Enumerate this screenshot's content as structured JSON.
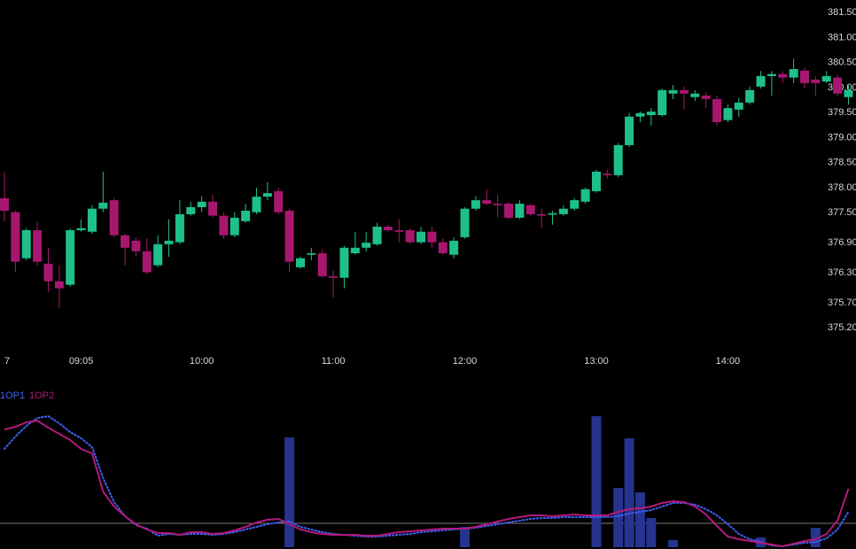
{
  "chart_data": [
    {
      "type": "candlestick",
      "categories": [
        "7",
        null,
        null,
        null,
        null,
        null,
        null,
        "09:05",
        null,
        null,
        null,
        null,
        null,
        null,
        null,
        null,
        null,
        null,
        "10:00",
        null,
        null,
        null,
        null,
        null,
        null,
        null,
        null,
        null,
        null,
        null,
        "11:00",
        null,
        null,
        null,
        null,
        null,
        null,
        null,
        null,
        null,
        null,
        null,
        "12:00",
        null,
        null,
        null,
        null,
        null,
        null,
        null,
        null,
        null,
        null,
        null,
        "13:00",
        null,
        null,
        null,
        null,
        null,
        null,
        null,
        null,
        null,
        null,
        null,
        "14:00",
        null,
        null,
        null,
        null,
        null,
        null,
        null,
        null,
        null,
        null,
        null
      ],
      "open": [
        377.79,
        377.51,
        376.59,
        377.15,
        376.48,
        376.13,
        376.06,
        377.15,
        377.12,
        377.58,
        377.75,
        377.05,
        376.94,
        376.73,
        376.45,
        376.87,
        376.91,
        377.47,
        377.61,
        377.72,
        377.44,
        377.05,
        377.33,
        377.51,
        377.82,
        377.93,
        377.54,
        376.41,
        376.66,
        376.69,
        376.23,
        376.2,
        376.69,
        376.8,
        376.87,
        377.22,
        377.15,
        377.15,
        376.91,
        377.12,
        376.91,
        376.66,
        377.01,
        377.58,
        377.75,
        377.68,
        377.68,
        377.4,
        377.65,
        377.47,
        377.46,
        377.47,
        377.58,
        377.72,
        377.93,
        378.28,
        378.25,
        378.85,
        379.42,
        379.45,
        379.45,
        379.88,
        379.95,
        379.81,
        379.84,
        379.77,
        379.35,
        379.56,
        379.7,
        380.02,
        380.23,
        380.27,
        380.2,
        380.34,
        380.16,
        380.12,
        380.2,
        379.81
      ],
      "high": [
        378.3,
        377.54,
        377.19,
        377.33,
        376.8,
        376.45,
        377.19,
        377.37,
        377.65,
        378.32,
        377.79,
        377.08,
        377.01,
        376.98,
        377.05,
        377.37,
        377.75,
        377.72,
        377.83,
        377.86,
        377.51,
        377.51,
        377.68,
        378.0,
        378.11,
        378.0,
        377.58,
        376.62,
        376.8,
        376.77,
        376.34,
        376.84,
        377.12,
        377.12,
        377.3,
        377.26,
        377.37,
        377.19,
        377.22,
        377.22,
        376.98,
        377.01,
        377.61,
        377.83,
        377.97,
        377.86,
        377.72,
        377.75,
        377.68,
        377.58,
        377.54,
        377.65,
        377.79,
        378.0,
        378.36,
        378.36,
        378.89,
        379.49,
        379.52,
        379.59,
        379.98,
        380.05,
        380.02,
        379.95,
        379.91,
        379.84,
        379.66,
        379.8,
        380.02,
        380.33,
        380.33,
        380.33,
        380.58,
        380.4,
        380.23,
        380.33,
        380.26,
        380.05
      ],
      "low": [
        377.33,
        376.31,
        376.55,
        376.45,
        375.92,
        375.6,
        376.02,
        377.12,
        377.08,
        377.51,
        377.01,
        376.45,
        376.62,
        376.27,
        376.41,
        376.62,
        376.87,
        377.44,
        377.51,
        377.4,
        376.98,
        377.01,
        377.3,
        377.47,
        377.75,
        377.47,
        376.31,
        376.38,
        376.55,
        376.2,
        375.81,
        375.99,
        376.66,
        376.73,
        376.84,
        377.12,
        376.91,
        376.87,
        376.87,
        376.8,
        376.66,
        376.59,
        376.98,
        377.54,
        377.65,
        377.4,
        377.37,
        377.37,
        377.44,
        377.19,
        377.26,
        377.44,
        377.54,
        377.68,
        377.9,
        378.18,
        378.21,
        378.81,
        379.31,
        379.24,
        379.42,
        379.77,
        379.56,
        379.73,
        379.59,
        379.24,
        379.31,
        379.42,
        379.66,
        379.98,
        379.84,
        380.09,
        380.09,
        379.98,
        379.84,
        380.09,
        379.84,
        379.66
      ],
      "close": [
        377.54,
        376.52,
        377.15,
        376.52,
        376.13,
        375.99,
        377.15,
        377.19,
        377.58,
        377.7,
        377.05,
        376.8,
        376.73,
        376.31,
        376.87,
        376.94,
        377.47,
        377.61,
        377.72,
        377.44,
        377.05,
        377.4,
        377.54,
        377.82,
        377.89,
        377.51,
        376.52,
        376.59,
        376.69,
        376.23,
        376.2,
        376.8,
        376.8,
        376.9,
        377.22,
        377.15,
        377.12,
        376.91,
        377.12,
        376.91,
        376.69,
        376.94,
        377.58,
        377.75,
        377.68,
        377.65,
        377.4,
        377.68,
        377.47,
        377.44,
        377.49,
        377.58,
        377.75,
        377.97,
        378.32,
        378.25,
        378.85,
        379.42,
        379.49,
        379.52,
        379.95,
        379.95,
        379.88,
        379.88,
        379.77,
        379.31,
        379.59,
        379.7,
        379.95,
        380.23,
        380.27,
        380.2,
        380.37,
        380.09,
        380.09,
        380.23,
        379.88,
        379.95
      ],
      "up_color": "#1fbf8c",
      "down_color": "#a8176f",
      "ylim": [
        374.85,
        381.75
      ],
      "yticks": [
        {
          "value": 381.5,
          "label": "381.50"
        },
        {
          "value": 381,
          "label": "381.00"
        },
        {
          "value": 380.5,
          "label": "380.50"
        },
        {
          "value": 380,
          "label": "380.00"
        },
        {
          "value": 379.5,
          "label": "379.50"
        },
        {
          "value": 379,
          "label": "379.00"
        },
        {
          "value": 378.5,
          "label": "378.50"
        },
        {
          "value": 378,
          "label": "378.00"
        },
        {
          "value": 377.5,
          "label": "377.50"
        },
        {
          "value": 376.9,
          "label": "376.90"
        },
        {
          "value": 376.3,
          "label": "376.30"
        },
        {
          "value": 375.7,
          "label": "375.70"
        },
        {
          "value": 375.2,
          "label": "375.20"
        }
      ]
    },
    {
      "type": "line",
      "series": [
        {
          "name": "1OP1",
          "color": "#3f5ff0",
          "style": "dotted",
          "values": [
            111,
            125,
            137,
            146,
            148,
            140,
            130,
            123,
            113,
            78,
            51,
            35,
            25,
            21,
            13,
            15,
            14,
            15,
            15,
            14,
            15,
            17,
            20,
            23,
            26,
            28,
            29,
            23,
            20,
            17,
            15,
            14,
            13,
            12,
            12,
            13,
            14,
            15,
            17,
            18,
            19,
            20,
            21,
            22,
            24,
            26,
            28,
            30,
            32,
            33,
            33,
            34,
            34,
            34,
            34,
            34,
            35,
            38,
            40,
            42,
            46,
            50,
            50,
            48,
            43,
            36,
            26,
            15,
            9,
            6,
            2,
            1,
            3,
            5,
            6,
            10,
            20,
            40
          ]
        },
        {
          "name": "1OP2",
          "color": "#b3197b",
          "style": "solid",
          "values": [
            133,
            136,
            141,
            143,
            135,
            128,
            121,
            111,
            106,
            63,
            46,
            35,
            26,
            20,
            16,
            16,
            14,
            17,
            17,
            15,
            16,
            19,
            23,
            28,
            31,
            32,
            26,
            20,
            17,
            15,
            14,
            14,
            14,
            13,
            13,
            15,
            17,
            18,
            19,
            20,
            21,
            21,
            21,
            23,
            26,
            29,
            32,
            34,
            36,
            36,
            35,
            36,
            37,
            36,
            36,
            36,
            40,
            43,
            44,
            46,
            50,
            52,
            51,
            46,
            37,
            24,
            12,
            9,
            7,
            5,
            3,
            1,
            4,
            7,
            9,
            15,
            30,
            66
          ]
        }
      ],
      "bars": {
        "color": "#26338f",
        "values": [
          null,
          null,
          null,
          null,
          null,
          null,
          null,
          null,
          null,
          null,
          null,
          null,
          null,
          null,
          null,
          null,
          null,
          null,
          null,
          null,
          null,
          null,
          null,
          null,
          null,
          null,
          124,
          null,
          null,
          null,
          null,
          null,
          null,
          null,
          null,
          null,
          null,
          null,
          null,
          null,
          null,
          null,
          23,
          null,
          null,
          null,
          null,
          null,
          null,
          null,
          null,
          null,
          null,
          null,
          148,
          null,
          67,
          123,
          62,
          33,
          null,
          8,
          null,
          null,
          null,
          null,
          null,
          null,
          null,
          11,
          null,
          null,
          null,
          null,
          22,
          null,
          null,
          null
        ]
      },
      "hline": 27,
      "ylim": [
        0,
        168
      ]
    }
  ]
}
